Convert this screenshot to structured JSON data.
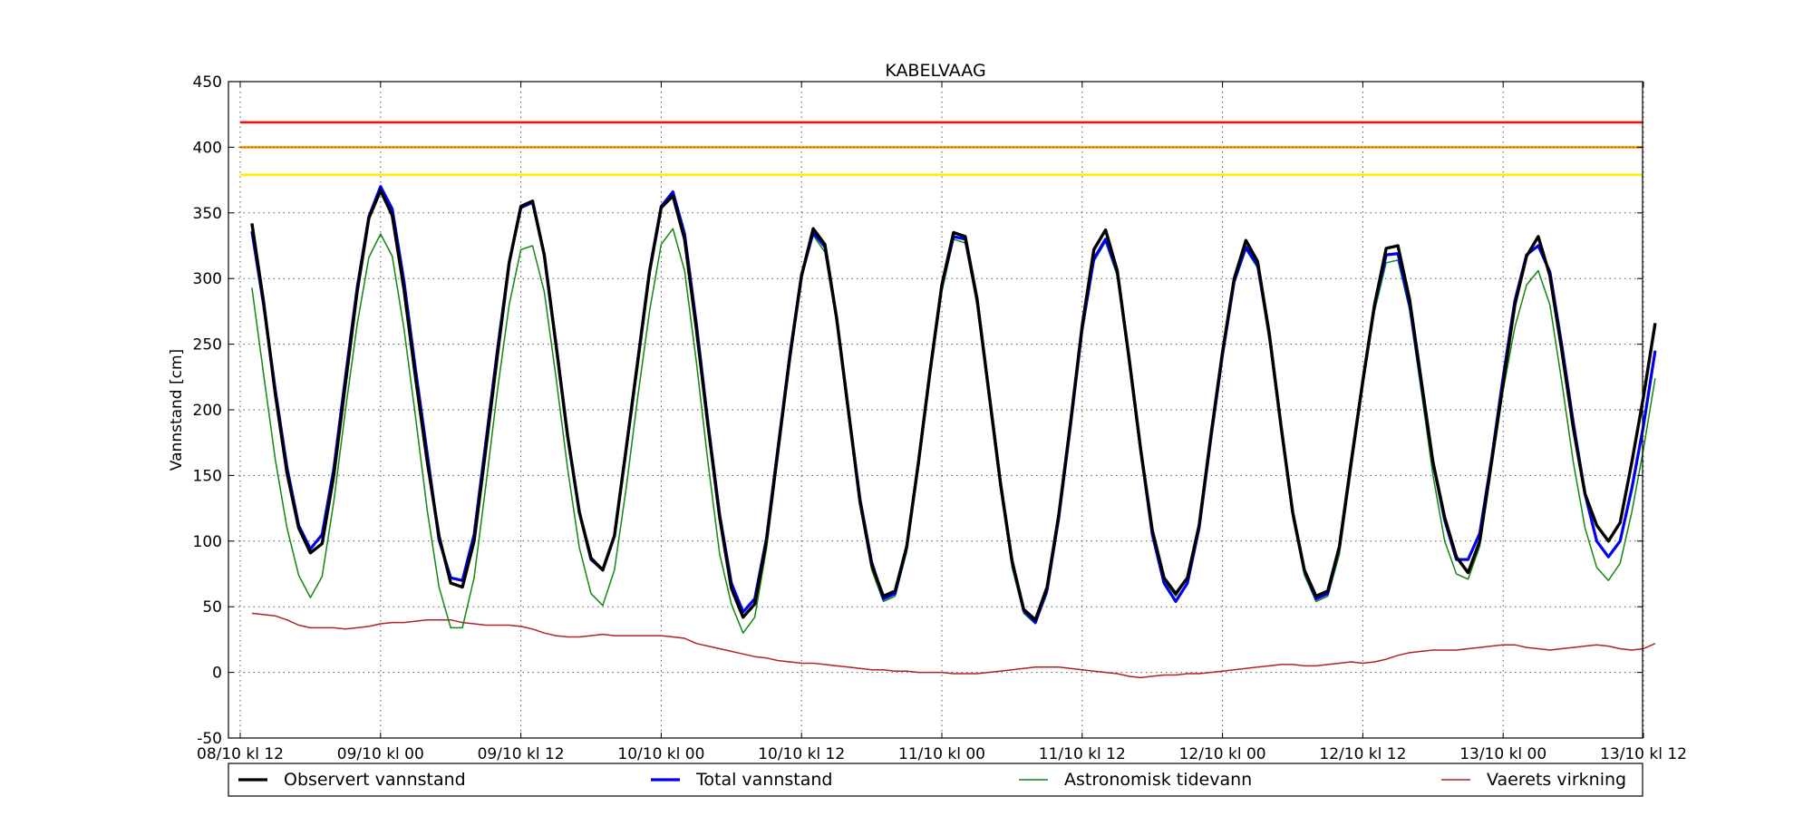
{
  "chart_data": {
    "type": "line",
    "title": "KABELVAAG",
    "xlabel": "",
    "ylabel": "Vannstand [cm]",
    "ylim": [
      -50,
      450
    ],
    "yticks": [
      -50,
      0,
      50,
      100,
      150,
      200,
      250,
      300,
      350,
      400,
      450
    ],
    "xlim": [
      0,
      121
    ],
    "xticks": [
      {
        "value": 0,
        "label": "08/10 kl 12"
      },
      {
        "value": 12,
        "label": "09/10 kl 00"
      },
      {
        "value": 24,
        "label": "09/10 kl 12"
      },
      {
        "value": 36,
        "label": "10/10 kl 00"
      },
      {
        "value": 48,
        "label": "10/10 kl 12"
      },
      {
        "value": 60,
        "label": "11/10 kl 00"
      },
      {
        "value": 72,
        "label": "11/10 kl 12"
      },
      {
        "value": 84,
        "label": "12/10 kl 00"
      },
      {
        "value": 96,
        "label": "12/10 kl 12"
      },
      {
        "value": 108,
        "label": "13/10 kl 00"
      },
      {
        "value": 120,
        "label": "13/10 kl 12"
      }
    ],
    "grid": true,
    "legend_placement": "bottom",
    "threshold_lines": [
      {
        "value": 419,
        "color": "#ee1111"
      },
      {
        "value": 400,
        "color": "#ff9900"
      },
      {
        "value": 379,
        "color": "#ffee00"
      }
    ],
    "series": [
      {
        "name": "Observert vannstand",
        "color": "#000000",
        "x": [
          1,
          2,
          3,
          4,
          5,
          6,
          7,
          8,
          9,
          10,
          11,
          12,
          13,
          14,
          15,
          16,
          17,
          18,
          19,
          20,
          21,
          22,
          23,
          24,
          25,
          26,
          27,
          28,
          29,
          30,
          31,
          32,
          33,
          34,
          35,
          36,
          37,
          38,
          39,
          40,
          41,
          42,
          43,
          44,
          45,
          46,
          47,
          48,
          49,
          50,
          51,
          52,
          53,
          54,
          55,
          56,
          57,
          58,
          59,
          60,
          61,
          62,
          63,
          64,
          65,
          66,
          67,
          68,
          69,
          70,
          71,
          72,
          73,
          74,
          75,
          76,
          77,
          78,
          79,
          80,
          81,
          82,
          83,
          84,
          85,
          86,
          87,
          88,
          89,
          90,
          91,
          92,
          93,
          94,
          95,
          96,
          97,
          98,
          99,
          100,
          101,
          102,
          103,
          104,
          105,
          106,
          107,
          108,
          109,
          110,
          111,
          112,
          113,
          114,
          115,
          116,
          117,
          118,
          119,
          120,
          121
        ],
        "y": [
          342,
          282,
          212,
          152,
          110,
          91,
          98,
          150,
          220,
          290,
          346,
          367,
          348,
          292,
          224,
          160,
          104,
          68,
          65,
          100,
          170,
          242,
          312,
          355,
          359,
          318,
          250,
          180,
          122,
          87,
          78,
          104,
          170,
          237,
          305,
          354,
          363,
          330,
          262,
          188,
          118,
          64,
          42,
          52,
          100,
          170,
          240,
          302,
          338,
          326,
          270,
          200,
          130,
          82,
          58,
          62,
          96,
          160,
          230,
          295,
          335,
          332,
          285,
          215,
          145,
          85,
          48,
          40,
          65,
          120,
          190,
          264,
          322,
          337,
          306,
          240,
          170,
          108,
          72,
          60,
          72,
          112,
          180,
          244,
          300,
          329,
          313,
          258,
          188,
          122,
          78,
          58,
          62,
          96,
          160,
          222,
          280,
          323,
          325,
          284,
          222,
          160,
          118,
          88,
          76,
          100,
          160,
          220,
          280,
          317,
          332,
          302,
          246,
          186,
          136,
          112,
          100,
          114,
          160,
          210,
          266
        ]
      },
      {
        "name": "Total vannstand",
        "color": "#0000ee",
        "x": [
          1,
          2,
          3,
          4,
          5,
          6,
          7,
          8,
          9,
          10,
          11,
          12,
          13,
          14,
          15,
          16,
          17,
          18,
          19,
          20,
          21,
          22,
          23,
          24,
          25,
          26,
          27,
          28,
          29,
          30,
          31,
          32,
          33,
          34,
          35,
          36,
          37,
          38,
          39,
          40,
          41,
          42,
          43,
          44,
          45,
          46,
          47,
          48,
          49,
          50,
          51,
          52,
          53,
          54,
          55,
          56,
          57,
          58,
          59,
          60,
          61,
          62,
          63,
          64,
          65,
          66,
          67,
          68,
          69,
          70,
          71,
          72,
          73,
          74,
          75,
          76,
          77,
          78,
          79,
          80,
          81,
          82,
          83,
          84,
          85,
          86,
          87,
          88,
          89,
          90,
          91,
          92,
          93,
          94,
          95,
          96,
          97,
          98,
          99,
          100,
          101,
          102,
          103,
          104,
          105,
          106,
          107,
          108,
          109,
          110,
          111,
          112,
          113,
          114,
          115,
          116,
          117,
          118,
          119,
          120,
          121
        ],
        "y": [
          336,
          280,
          215,
          156,
          112,
          94,
          105,
          155,
          225,
          293,
          347,
          370,
          353,
          298,
          230,
          166,
          101,
          72,
          70,
          105,
          175,
          246,
          312,
          354,
          358,
          318,
          250,
          180,
          122,
          86,
          78,
          104,
          170,
          238,
          306,
          355,
          366,
          334,
          266,
          190,
          120,
          68,
          46,
          56,
          102,
          172,
          242,
          303,
          335,
          324,
          270,
          200,
          132,
          84,
          56,
          60,
          96,
          160,
          230,
          295,
          332,
          330,
          285,
          215,
          145,
          85,
          47,
          38,
          63,
          118,
          188,
          262,
          315,
          330,
          305,
          240,
          170,
          105,
          68,
          54,
          68,
          110,
          178,
          242,
          298,
          324,
          310,
          258,
          188,
          122,
          78,
          56,
          60,
          96,
          160,
          222,
          280,
          318,
          319,
          280,
          220,
          160,
          116,
          86,
          86,
          106,
          162,
          225,
          283,
          318,
          325,
          305,
          250,
          190,
          136,
          100,
          88,
          100,
          140,
          188,
          245
        ]
      },
      {
        "name": "Astronomisk tidevann",
        "color": "#118811",
        "x": [
          1,
          2,
          3,
          4,
          5,
          6,
          7,
          8,
          9,
          10,
          11,
          12,
          13,
          14,
          15,
          16,
          17,
          18,
          19,
          20,
          21,
          22,
          23,
          24,
          25,
          26,
          27,
          28,
          29,
          30,
          31,
          32,
          33,
          34,
          35,
          36,
          37,
          38,
          39,
          40,
          41,
          42,
          43,
          44,
          45,
          46,
          47,
          48,
          49,
          50,
          51,
          52,
          53,
          54,
          55,
          56,
          57,
          58,
          59,
          60,
          61,
          62,
          63,
          64,
          65,
          66,
          67,
          68,
          69,
          70,
          71,
          72,
          73,
          74,
          75,
          76,
          77,
          78,
          79,
          80,
          81,
          82,
          83,
          84,
          85,
          86,
          87,
          88,
          89,
          90,
          91,
          92,
          93,
          94,
          95,
          96,
          97,
          98,
          99,
          100,
          101,
          102,
          103,
          104,
          105,
          106,
          107,
          108,
          109,
          110,
          111,
          112,
          113,
          114,
          115,
          116,
          117,
          118,
          119,
          120,
          121
        ],
        "y": [
          293,
          227,
          162,
          110,
          74,
          57,
          73,
          130,
          200,
          265,
          316,
          334,
          317,
          262,
          194,
          123,
          65,
          34,
          34,
          72,
          142,
          215,
          280,
          322,
          325,
          290,
          225,
          155,
          95,
          60,
          51,
          78,
          140,
          210,
          275,
          326,
          338,
          306,
          237,
          160,
          90,
          52,
          30,
          42,
          94,
          165,
          237,
          300,
          333,
          320,
          266,
          195,
          128,
          78,
          54,
          58,
          92,
          156,
          225,
          290,
          330,
          327,
          280,
          210,
          140,
          80,
          45,
          37,
          60,
          115,
          186,
          258,
          313,
          328,
          302,
          235,
          165,
          104,
          70,
          58,
          72,
          110,
          175,
          240,
          296,
          322,
          308,
          252,
          184,
          118,
          74,
          54,
          58,
          90,
          154,
          218,
          275,
          312,
          314,
          276,
          214,
          150,
          100,
          75,
          71,
          96,
          155,
          215,
          263,
          295,
          306,
          280,
          222,
          160,
          110,
          80,
          70,
          83,
          122,
          170,
          224
        ]
      },
      {
        "name": "Vaerets virkning",
        "color": "#b22222",
        "x": [
          1,
          2,
          3,
          4,
          5,
          6,
          7,
          8,
          9,
          10,
          11,
          12,
          13,
          14,
          15,
          16,
          17,
          18,
          19,
          20,
          21,
          22,
          23,
          24,
          25,
          26,
          27,
          28,
          29,
          30,
          31,
          32,
          33,
          34,
          35,
          36,
          37,
          38,
          39,
          40,
          41,
          42,
          43,
          44,
          45,
          46,
          47,
          48,
          49,
          50,
          51,
          52,
          53,
          54,
          55,
          56,
          57,
          58,
          59,
          60,
          61,
          62,
          63,
          64,
          65,
          66,
          67,
          68,
          69,
          70,
          71,
          72,
          73,
          74,
          75,
          76,
          77,
          78,
          79,
          80,
          81,
          82,
          83,
          84,
          85,
          86,
          87,
          88,
          89,
          90,
          91,
          92,
          93,
          94,
          95,
          96,
          97,
          98,
          99,
          100,
          101,
          102,
          103,
          104,
          105,
          106,
          107,
          108,
          109,
          110,
          111,
          112,
          113,
          114,
          115,
          116,
          117,
          118,
          119,
          120,
          121
        ],
        "y": [
          45,
          44,
          43,
          40,
          36,
          34,
          34,
          34,
          33,
          34,
          35,
          37,
          38,
          38,
          39,
          40,
          40,
          40,
          38,
          37,
          36,
          36,
          36,
          35,
          33,
          30,
          28,
          27,
          27,
          28,
          29,
          28,
          28,
          28,
          28,
          28,
          27,
          26,
          22,
          20,
          18,
          16,
          14,
          12,
          11,
          9,
          8,
          7,
          7,
          6,
          5,
          4,
          3,
          2,
          2,
          1,
          1,
          0,
          0,
          0,
          -1,
          -1,
          -1,
          0,
          1,
          2,
          3,
          4,
          4,
          4,
          3,
          2,
          1,
          0,
          -1,
          -3,
          -4,
          -3,
          -2,
          -2,
          -1,
          -1,
          0,
          1,
          2,
          3,
          4,
          5,
          6,
          6,
          5,
          5,
          6,
          7,
          8,
          7,
          8,
          10,
          13,
          15,
          16,
          17,
          17,
          17,
          18,
          19,
          20,
          21,
          21,
          19,
          18,
          17,
          18,
          19,
          20,
          21,
          20,
          18,
          17,
          18,
          22
        ]
      }
    ]
  }
}
